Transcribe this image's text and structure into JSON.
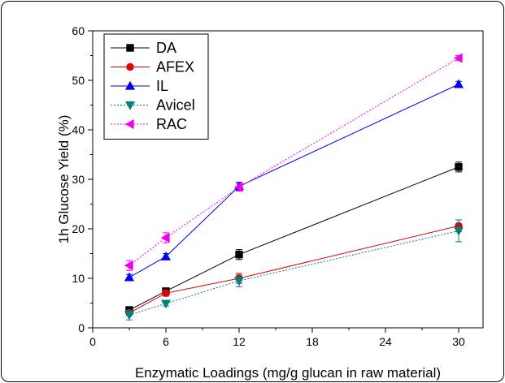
{
  "chart_data": {
    "type": "line",
    "xlabel": "Enzymatic Loadings (mg/g glucan in raw material)",
    "ylabel": "1h Glucose Yield (%)",
    "xlim": [
      0,
      32
    ],
    "ylim": [
      0,
      60
    ],
    "xticks": [
      0,
      6,
      12,
      18,
      24,
      30
    ],
    "yticks": [
      0,
      10,
      20,
      30,
      40,
      50,
      60
    ],
    "grid": false,
    "legend_position": "top-left",
    "x": [
      3,
      6,
      12,
      30
    ],
    "series": [
      {
        "name": "DA",
        "values": [
          3.6,
          7.4,
          14.8,
          32.5
        ],
        "errors": [
          0.5,
          0.6,
          1.0,
          1.0
        ],
        "color": "#000000",
        "marker": "square",
        "dash": "solid"
      },
      {
        "name": "AFEX",
        "values": [
          3.0,
          7.0,
          10.0,
          20.6
        ],
        "errors": [
          0.5,
          0.6,
          1.0,
          1.2
        ],
        "color": "#e00000",
        "marker": "circle",
        "dash": "solid"
      },
      {
        "name": "IL",
        "values": [
          10.2,
          14.4,
          28.6,
          49.2
        ],
        "errors": [
          0.6,
          0.6,
          0.8,
          0.6
        ],
        "color": "#0000ee",
        "marker": "triangle-up",
        "dash": "solid"
      },
      {
        "name": "Avicel",
        "values": [
          2.6,
          4.9,
          9.5,
          19.6
        ],
        "errors": [
          1.0,
          0.5,
          1.2,
          2.2
        ],
        "color": "#008080",
        "marker": "triangle-down",
        "dash": "dotted"
      },
      {
        "name": "RAC",
        "values": [
          12.6,
          18.2,
          28.4,
          54.5
        ],
        "errors": [
          1.0,
          1.0,
          0.8,
          0.5
        ],
        "color": "#ee00ee",
        "marker": "triangle-left",
        "dash": "dotted"
      }
    ]
  }
}
